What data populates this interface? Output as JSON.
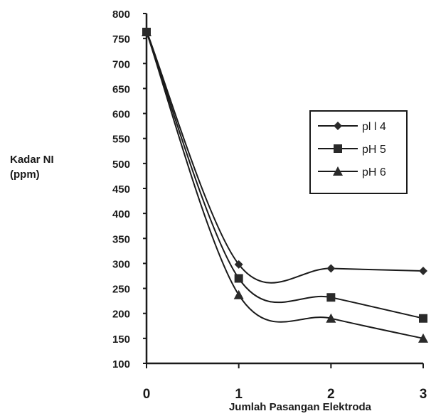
{
  "chart_data": {
    "type": "line",
    "xlabel": "Jumlah Pasangan Elektroda",
    "ylabel_lines": [
      "Kadar NI",
      "(ppm)"
    ],
    "x": [
      0,
      1,
      2,
      3
    ],
    "x_ticks": [
      "0",
      "1",
      "2",
      "3"
    ],
    "xlim": [
      0,
      3
    ],
    "ylim": [
      100,
      800
    ],
    "y_ticks": [
      "100",
      "150",
      "200",
      "250",
      "300",
      "350",
      "400",
      "450",
      "500",
      "550",
      "600",
      "650",
      "700",
      "750",
      "800"
    ],
    "grid": false,
    "legend_position": "right",
    "series": [
      {
        "name": "pl l 4",
        "marker": "diamond",
        "values": [
          765,
          298,
          290,
          285
        ]
      },
      {
        "name": "pH 5",
        "marker": "square",
        "values": [
          763,
          270,
          232,
          190
        ]
      },
      {
        "name": "pH 6",
        "marker": "triangle",
        "values": [
          763,
          237,
          190,
          150
        ]
      }
    ],
    "colors": {
      "line": "#1a1a1a",
      "marker": "#2a2a2a",
      "axis": "#1a1a1a"
    }
  }
}
